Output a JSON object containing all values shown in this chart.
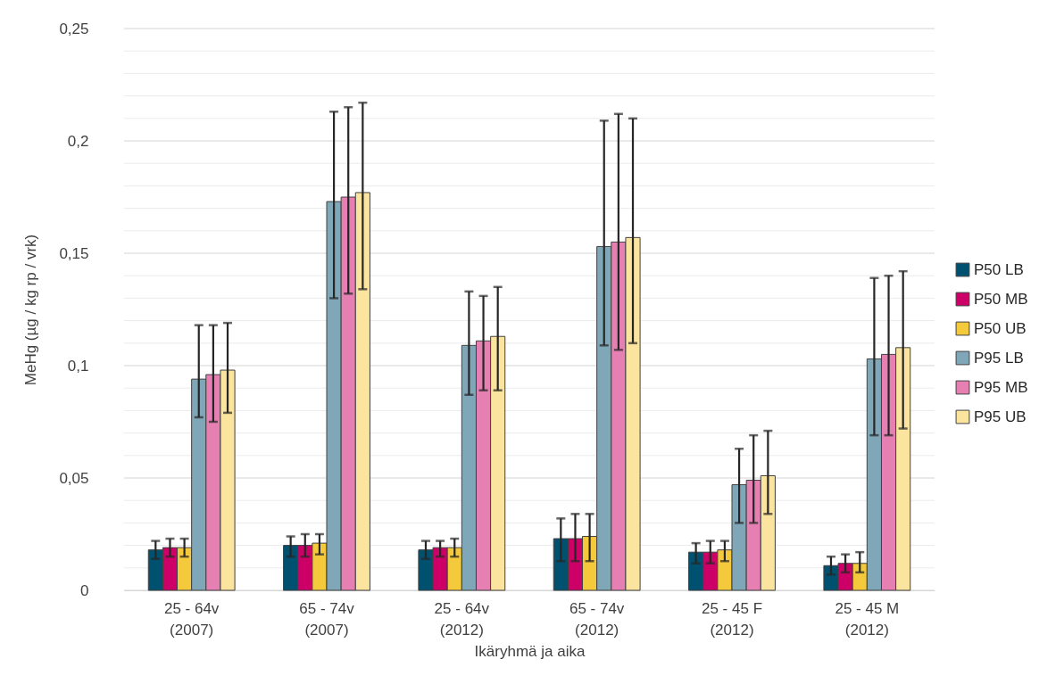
{
  "chart_data": {
    "type": "bar",
    "xlabel": "Ikäryhmä ja aika",
    "ylabel": "MeHg (µg / kg rp / vrk)",
    "categories": [
      "25 - 64v\n(2007)",
      "65 - 74v\n(2007)",
      "25 - 64v\n(2012)",
      "65 - 74v\n(2012)",
      "25 - 45 F\n(2012)",
      "25 - 45 M\n(2012)"
    ],
    "ylim": [
      0,
      0.25
    ],
    "yticks": [
      0,
      {
        "value": 0.01,
        "label": null
      },
      {
        "value": 0.02,
        "label": null
      },
      {
        "value": 0.03,
        "label": null
      },
      {
        "value": 0.04,
        "label": null
      },
      {
        "value": 0.05,
        "label": "0,05"
      },
      {
        "value": 0.06,
        "label": null
      },
      {
        "value": 0.07,
        "label": null
      },
      {
        "value": 0.08,
        "label": null
      },
      {
        "value": 0.09,
        "label": null
      },
      {
        "value": 0.1,
        "label": "0,1"
      },
      {
        "value": 0.11,
        "label": null
      },
      {
        "value": 0.12,
        "label": null
      },
      {
        "value": 0.13,
        "label": null
      },
      {
        "value": 0.14,
        "label": null
      },
      {
        "value": 0.15,
        "label": "0,15"
      },
      {
        "value": 0.16,
        "label": null
      },
      {
        "value": 0.17,
        "label": null
      },
      {
        "value": 0.18,
        "label": null
      },
      {
        "value": 0.19,
        "label": null
      },
      {
        "value": 0.2,
        "label": "0,2"
      },
      {
        "value": 0.21,
        "label": null
      },
      {
        "value": 0.22,
        "label": null
      },
      {
        "value": 0.23,
        "label": null
      },
      {
        "value": 0.24,
        "label": null
      },
      {
        "value": 0.25,
        "label": "0,25"
      }
    ],
    "grid": "y",
    "legend": "right",
    "series": [
      {
        "name": "P50 LB",
        "color": "#00506f",
        "values": [
          0.018,
          0.02,
          0.018,
          0.023,
          0.017,
          0.011
        ],
        "errors": [
          [
            0.014,
            0.022
          ],
          [
            0.015,
            0.024
          ],
          [
            0.014,
            0.022
          ],
          [
            0.013,
            0.032
          ],
          [
            0.012,
            0.021
          ],
          [
            0.007,
            0.015
          ]
        ]
      },
      {
        "name": "P50 MB",
        "color": "#cc0066",
        "values": [
          0.019,
          0.02,
          0.019,
          0.023,
          0.017,
          0.012
        ],
        "errors": [
          [
            0.015,
            0.023
          ],
          [
            0.015,
            0.025
          ],
          [
            0.015,
            0.022
          ],
          [
            0.013,
            0.034
          ],
          [
            0.012,
            0.022
          ],
          [
            0.008,
            0.016
          ]
        ]
      },
      {
        "name": "P50 UB",
        "color": "#f5c93c",
        "values": [
          0.019,
          0.021,
          0.019,
          0.024,
          0.018,
          0.012
        ],
        "errors": [
          [
            0.015,
            0.023
          ],
          [
            0.016,
            0.025
          ],
          [
            0.015,
            0.023
          ],
          [
            0.013,
            0.034
          ],
          [
            0.013,
            0.022
          ],
          [
            0.008,
            0.017
          ]
        ]
      },
      {
        "name": "P95 LB",
        "color": "#80a7b7",
        "values": [
          0.094,
          0.173,
          0.109,
          0.153,
          0.047,
          0.103
        ],
        "errors": [
          [
            0.077,
            0.118
          ],
          [
            0.13,
            0.213
          ],
          [
            0.087,
            0.133
          ],
          [
            0.109,
            0.209
          ],
          [
            0.03,
            0.063
          ],
          [
            0.069,
            0.139
          ]
        ]
      },
      {
        "name": "P95 MB",
        "color": "#e680b3",
        "values": [
          0.096,
          0.175,
          0.111,
          0.155,
          0.049,
          0.105
        ],
        "errors": [
          [
            0.075,
            0.118
          ],
          [
            0.132,
            0.215
          ],
          [
            0.089,
            0.131
          ],
          [
            0.107,
            0.212
          ],
          [
            0.03,
            0.069
          ],
          [
            0.069,
            0.14
          ]
        ]
      },
      {
        "name": "P95 UB",
        "color": "#fae49e",
        "values": [
          0.098,
          0.177,
          0.113,
          0.157,
          0.051,
          0.108
        ],
        "errors": [
          [
            0.079,
            0.119
          ],
          [
            0.134,
            0.217
          ],
          [
            0.089,
            0.135
          ],
          [
            0.11,
            0.21
          ],
          [
            0.034,
            0.071
          ],
          [
            0.072,
            0.142
          ]
        ]
      }
    ]
  }
}
